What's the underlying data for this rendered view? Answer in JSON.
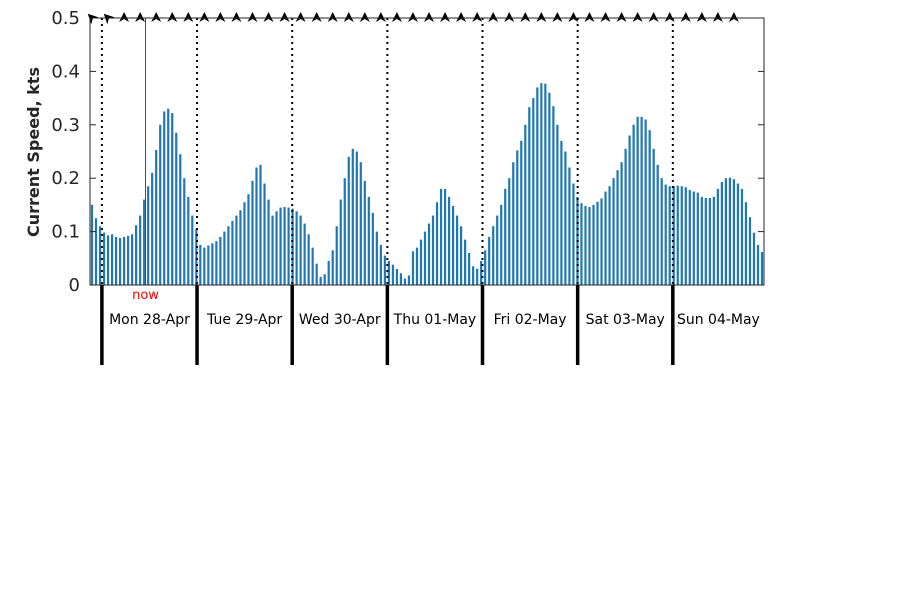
{
  "chart_data": {
    "type": "bar",
    "title": "",
    "xlabel": "",
    "ylabel": "Current Speed, kts",
    "ylim": [
      0,
      0.5
    ],
    "yticks": [
      "0",
      "0.1",
      "0.2",
      "0.3",
      "0.4",
      "0.5"
    ],
    "x_start": "2025-04-27T21:00",
    "x_end": "2025-05-04T23:00",
    "interval_hours": 1,
    "bar_color": "#1f77b4",
    "grid": false,
    "legend": "none",
    "now": {
      "label": "now",
      "time": "2025-04-28T11:00",
      "color": "#ff0000"
    },
    "days": [
      {
        "start": "2025-04-28T00:00",
        "label": "Mon 28-Apr"
      },
      {
        "start": "2025-04-29T00:00",
        "label": "Tue 29-Apr"
      },
      {
        "start": "2025-04-30T00:00",
        "label": "Wed 30-Apr"
      },
      {
        "start": "2025-05-01T00:00",
        "label": "Thu 01-May"
      },
      {
        "start": "2025-05-02T00:00",
        "label": "Fri 02-May"
      },
      {
        "start": "2025-05-03T00:00",
        "label": "Sat 03-May"
      },
      {
        "start": "2025-05-04T00:00",
        "label": "Sun 04-May"
      }
    ],
    "values": [
      0.15,
      0.125,
      0.11,
      0.098,
      0.093,
      0.095,
      0.09,
      0.088,
      0.09,
      0.092,
      0.095,
      0.112,
      0.13,
      0.16,
      0.185,
      0.21,
      0.253,
      0.3,
      0.325,
      0.33,
      0.322,
      0.285,
      0.245,
      0.2,
      0.165,
      0.13,
      0.105,
      0.075,
      0.07,
      0.074,
      0.078,
      0.082,
      0.09,
      0.1,
      0.11,
      0.12,
      0.13,
      0.14,
      0.155,
      0.17,
      0.195,
      0.22,
      0.225,
      0.19,
      0.16,
      0.13,
      0.138,
      0.145,
      0.146,
      0.145,
      0.143,
      0.138,
      0.13,
      0.115,
      0.095,
      0.07,
      0.04,
      0.015,
      0.02,
      0.045,
      0.065,
      0.11,
      0.16,
      0.2,
      0.24,
      0.255,
      0.25,
      0.23,
      0.195,
      0.165,
      0.135,
      0.1,
      0.075,
      0.055,
      0.045,
      0.038,
      0.03,
      0.022,
      0.012,
      0.018,
      0.063,
      0.07,
      0.085,
      0.1,
      0.115,
      0.13,
      0.155,
      0.18,
      0.18,
      0.165,
      0.148,
      0.13,
      0.11,
      0.085,
      0.06,
      0.035,
      0.03,
      0.045,
      0.065,
      0.09,
      0.11,
      0.13,
      0.15,
      0.18,
      0.2,
      0.23,
      0.252,
      0.27,
      0.3,
      0.333,
      0.35,
      0.37,
      0.378,
      0.377,
      0.36,
      0.335,
      0.3,
      0.27,
      0.25,
      0.22,
      0.19,
      0.165,
      0.153,
      0.148,
      0.146,
      0.15,
      0.156,
      0.162,
      0.175,
      0.185,
      0.2,
      0.215,
      0.23,
      0.255,
      0.28,
      0.3,
      0.315,
      0.315,
      0.31,
      0.29,
      0.255,
      0.225,
      0.2,
      0.188,
      0.185,
      0.185,
      0.186,
      0.185,
      0.183,
      0.178,
      0.175,
      0.173,
      0.165,
      0.163,
      0.163,
      0.165,
      0.18,
      0.193,
      0.2,
      0.201,
      0.198,
      0.19,
      0.18,
      0.155,
      0.127,
      0.098,
      0.075,
      0.062
    ],
    "arrow_angles_deg": [
      -45,
      0,
      0,
      0,
      -45,
      0,
      0,
      0,
      0,
      0,
      0,
      0,
      0,
      0,
      0,
      0,
      0,
      -80,
      0,
      0,
      0,
      -75,
      0,
      0,
      0,
      -60,
      0,
      0,
      0,
      -45,
      0,
      0,
      0,
      -45,
      0,
      0,
      0,
      -30,
      0,
      0,
      0,
      -15,
      0,
      0,
      0,
      -10,
      0,
      0,
      0,
      0,
      0,
      0,
      0,
      -15,
      0,
      0,
      0,
      0,
      0,
      0,
      0,
      15,
      0,
      0,
      0,
      20,
      0,
      0,
      0,
      30,
      0,
      0,
      0,
      -30,
      0,
      0,
      0,
      -10,
      0,
      0,
      0,
      10,
      0,
      0,
      0,
      20,
      0,
      0,
      0,
      30,
      0,
      0,
      0,
      160,
      0,
      0,
      0,
      180,
      0,
      0,
      0,
      195,
      0,
      0,
      0,
      200,
      0,
      0,
      0,
      205,
      0,
      0,
      0,
      210,
      0,
      0,
      0,
      210,
      0,
      0,
      0,
      210,
      0,
      0,
      0,
      215,
      0,
      0,
      0,
      210,
      0,
      0,
      0,
      200,
      0,
      0,
      0,
      200,
      0,
      0,
      0,
      200,
      0,
      0,
      0,
      200,
      0,
      0,
      0,
      210,
      0,
      0,
      0,
      205,
      0,
      0,
      0,
      200,
      0,
      0,
      0,
      200,
      0,
      0
    ]
  }
}
